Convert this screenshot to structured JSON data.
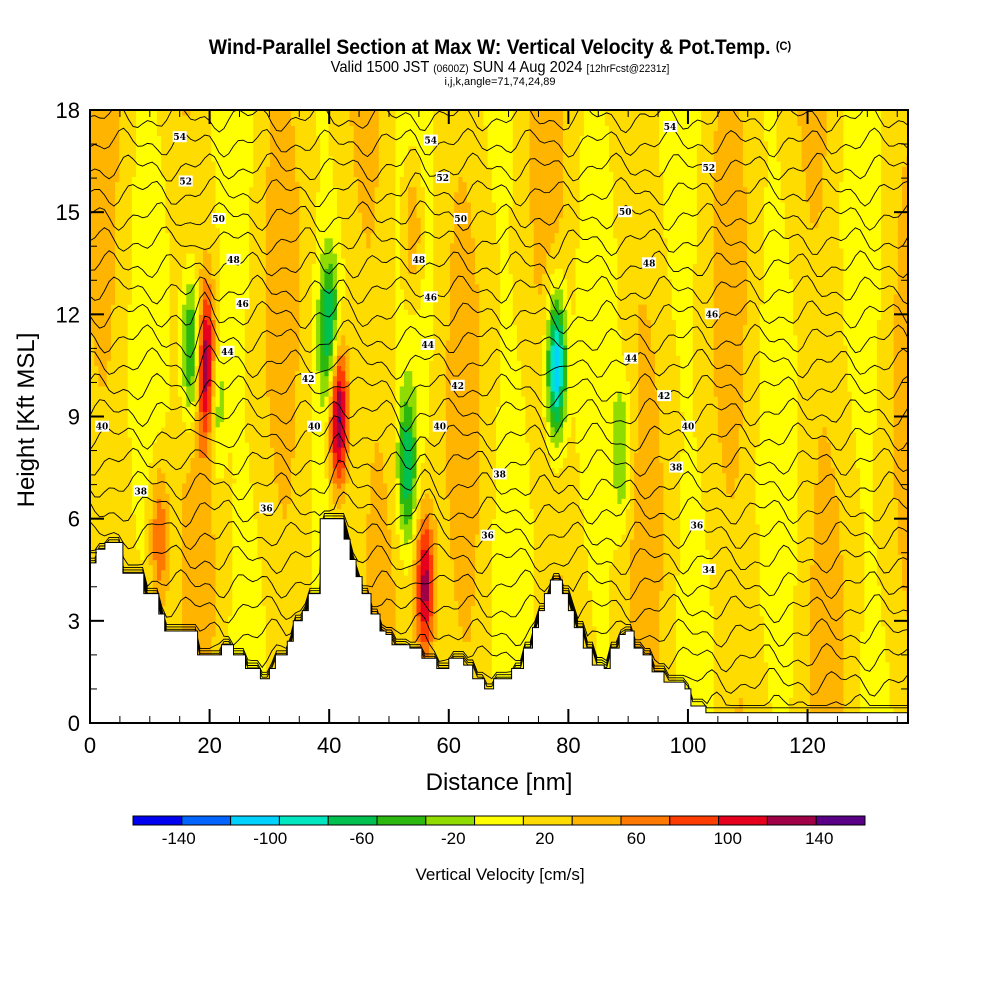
{
  "title": {
    "main": "Wind-Parallel Section at Max W: Vertical Velocity & Pot.Temp.",
    "copyright": "(C)",
    "valid_prefix": "Valid 1500 JST",
    "valid_utc": "(0600Z)",
    "valid_date": "SUN 4 Aug 2024",
    "forecast": "[12hrFcst@2231z]",
    "indices": "i,j,k,angle=71,74,24,89"
  },
  "chart_data": {
    "type": "heatmap",
    "title": "Wind-Parallel Section at Max W: Vertical Velocity & Pot.Temp.",
    "xlabel": "Distance [nm]",
    "ylabel": "Height [Kft MSL]",
    "xlim": [
      0,
      136.8
    ],
    "ylim": [
      0,
      18
    ],
    "xticks": [
      0,
      20,
      40,
      60,
      80,
      100,
      120
    ],
    "yticks": [
      0,
      3,
      6,
      9,
      12,
      15,
      18
    ],
    "xtick_labels": [
      "0",
      "20",
      "40",
      "60",
      "80",
      "100",
      "120"
    ],
    "ytick_labels": [
      "0",
      "3",
      "6",
      "9",
      "12",
      "15",
      "18"
    ],
    "colorbar": {
      "label": "Vertical Velocity [cm/s]",
      "levels": [
        -160,
        -140,
        -120,
        -100,
        -80,
        -60,
        -40,
        -20,
        0,
        20,
        40,
        60,
        80,
        100,
        120,
        140,
        160
      ],
      "tick_labels": [
        "-140",
        "-100",
        "-60",
        "-20",
        "20",
        "60",
        "100",
        "140"
      ],
      "tick_values": [
        -140,
        -100,
        -60,
        -20,
        20,
        60,
        100,
        140
      ],
      "colors": [
        "#0000f0",
        "#0064ff",
        "#00d2ff",
        "#00e6c0",
        "#00c050",
        "#2db80f",
        "#91dc00",
        "#ffff00",
        "#ffdc00",
        "#ffb400",
        "#ff7800",
        "#ff3c00",
        "#e6001e",
        "#a00046",
        "#5a0087"
      ]
    },
    "vertical_velocity_cores": [
      {
        "x_nm": 19.5,
        "z_kft": 10.5,
        "w_cms": 120,
        "sign": "up"
      },
      {
        "x_nm": 17,
        "z_kft": 11,
        "w_cms": -90,
        "sign": "down"
      },
      {
        "x_nm": 21,
        "z_kft": 9.5,
        "w_cms": -60,
        "sign": "down"
      },
      {
        "x_nm": 41.5,
        "z_kft": 9,
        "w_cms": 140,
        "sign": "up"
      },
      {
        "x_nm": 40,
        "z_kft": 11.5,
        "w_cms": -80,
        "sign": "down"
      },
      {
        "x_nm": 53,
        "z_kft": 7.5,
        "w_cms": -80,
        "sign": "down"
      },
      {
        "x_nm": 56,
        "z_kft": 4,
        "w_cms": 110,
        "sign": "up"
      },
      {
        "x_nm": 11.5,
        "z_kft": 5.5,
        "w_cms": 60,
        "sign": "up"
      },
      {
        "x_nm": 78,
        "z_kft": 10.5,
        "w_cms": -130,
        "sign": "down"
      },
      {
        "x_nm": 54,
        "z_kft": 14.5,
        "w_cms": 50,
        "sign": "up"
      },
      {
        "x_nm": 89,
        "z_kft": 8,
        "w_cms": -50,
        "sign": "down"
      }
    ],
    "potential_temperature_contours": {
      "units": "C",
      "interval": 1,
      "labeled_values": [
        34,
        36,
        38,
        40,
        42,
        44,
        46,
        48,
        50,
        52,
        54
      ],
      "labels": [
        {
          "value": 54,
          "x_nm": 15,
          "z_kft": 17.2
        },
        {
          "value": 52,
          "x_nm": 16,
          "z_kft": 15.9
        },
        {
          "value": 50,
          "x_nm": 21.5,
          "z_kft": 14.8
        },
        {
          "value": 48,
          "x_nm": 24,
          "z_kft": 13.6
        },
        {
          "value": 46,
          "x_nm": 25.5,
          "z_kft": 12.3
        },
        {
          "value": 44,
          "x_nm": 23,
          "z_kft": 10.9
        },
        {
          "value": 42,
          "x_nm": 36.5,
          "z_kft": 10.1
        },
        {
          "value": 40,
          "x_nm": 37.5,
          "z_kft": 8.7
        },
        {
          "value": 40,
          "x_nm": 2,
          "z_kft": 8.7
        },
        {
          "value": 38,
          "x_nm": 8.5,
          "z_kft": 6.8
        },
        {
          "value": 36,
          "x_nm": 29.5,
          "z_kft": 6.3
        },
        {
          "value": 54,
          "x_nm": 57,
          "z_kft": 17.1
        },
        {
          "value": 52,
          "x_nm": 59,
          "z_kft": 16.0
        },
        {
          "value": 50,
          "x_nm": 62,
          "z_kft": 14.8
        },
        {
          "value": 48,
          "x_nm": 55,
          "z_kft": 13.6
        },
        {
          "value": 46,
          "x_nm": 57,
          "z_kft": 12.5
        },
        {
          "value": 44,
          "x_nm": 56.5,
          "z_kft": 11.1
        },
        {
          "value": 42,
          "x_nm": 61.5,
          "z_kft": 9.9
        },
        {
          "value": 40,
          "x_nm": 58.5,
          "z_kft": 8.7
        },
        {
          "value": 38,
          "x_nm": 68.5,
          "z_kft": 7.3
        },
        {
          "value": 36,
          "x_nm": 66.5,
          "z_kft": 5.5
        },
        {
          "value": 54,
          "x_nm": 97,
          "z_kft": 17.5
        },
        {
          "value": 52,
          "x_nm": 103.5,
          "z_kft": 16.3
        },
        {
          "value": 50,
          "x_nm": 89.5,
          "z_kft": 15.0
        },
        {
          "value": 48,
          "x_nm": 93.5,
          "z_kft": 13.5
        },
        {
          "value": 46,
          "x_nm": 104,
          "z_kft": 12.0
        },
        {
          "value": 44,
          "x_nm": 90.5,
          "z_kft": 10.7
        },
        {
          "value": 42,
          "x_nm": 96,
          "z_kft": 9.6
        },
        {
          "value": 40,
          "x_nm": 100,
          "z_kft": 8.7
        },
        {
          "value": 38,
          "x_nm": 98,
          "z_kft": 7.5
        },
        {
          "value": 36,
          "x_nm": 101.5,
          "z_kft": 5.8
        },
        {
          "value": 34,
          "x_nm": 103.5,
          "z_kft": 4.5
        }
      ]
    },
    "terrain_profile": {
      "x_nm": [
        0,
        1,
        1,
        2.5,
        2.5,
        5.5,
        5.5,
        9,
        9,
        11.5,
        11.5,
        12.5,
        12.5,
        13.5,
        13.5,
        18,
        18,
        20,
        20,
        22,
        22,
        24,
        24,
        26,
        26,
        28.5,
        28.5,
        30,
        30,
        31,
        31,
        33,
        33,
        34,
        34,
        35.5,
        35.5,
        36.5,
        36.5,
        38.5,
        38.5,
        42.5,
        42.5,
        43.5,
        43.5,
        44.5,
        44.5,
        45.5,
        45.5,
        47,
        47,
        48.5,
        48.5,
        49.5,
        49.5,
        50.5,
        50.5,
        52,
        52,
        53.5,
        53.5,
        55.5,
        55.5,
        58,
        58,
        60,
        60,
        62.5,
        62.5,
        64,
        64,
        66,
        66,
        67.5,
        67.5,
        70.5,
        70.5,
        72.5,
        72.5,
        74,
        74,
        75,
        75,
        76,
        76,
        77,
        77,
        79,
        79,
        80,
        80,
        81,
        81,
        82.5,
        82.5,
        84,
        84,
        86,
        86,
        87,
        87,
        88.5,
        88.5,
        89.5,
        89.5,
        91,
        91,
        92.5,
        92.5,
        94,
        94,
        96,
        96,
        99.5,
        99.5,
        100.5,
        100.5,
        103,
        103,
        136.8
      ],
      "z_kft": [
        4.7,
        4.7,
        5.1,
        5.1,
        5.3,
        5.3,
        4.4,
        4.4,
        3.8,
        3.8,
        3.2,
        3.2,
        2.7,
        2.7,
        2.7,
        2.7,
        2.0,
        2.0,
        2.0,
        2.0,
        2.3,
        2.3,
        2.0,
        2.0,
        1.6,
        1.6,
        1.3,
        1.3,
        1.6,
        1.6,
        2.0,
        2.0,
        2.4,
        2.4,
        3.0,
        3.0,
        3.3,
        3.3,
        3.8,
        3.8,
        6.0,
        6.0,
        5.4,
        5.4,
        4.8,
        4.8,
        4.3,
        4.3,
        3.8,
        3.8,
        3.2,
        3.2,
        2.7,
        2.7,
        2.6,
        2.6,
        2.3,
        2.3,
        2.3,
        2.3,
        2.2,
        2.2,
        1.9,
        1.9,
        1.6,
        1.6,
        1.9,
        1.9,
        1.7,
        1.7,
        1.3,
        1.3,
        1.0,
        1.0,
        1.3,
        1.3,
        1.6,
        1.6,
        2.2,
        2.2,
        2.8,
        2.8,
        3.3,
        3.3,
        3.8,
        3.8,
        4.2,
        4.2,
        3.8,
        3.8,
        3.3,
        3.3,
        2.8,
        2.8,
        2.2,
        2.2,
        1.7,
        1.7,
        1.6,
        1.6,
        2.2,
        2.2,
        2.6,
        2.6,
        2.7,
        2.7,
        2.2,
        2.2,
        2.0,
        2.0,
        1.5,
        1.5,
        1.2,
        1.2,
        1.0,
        1.0,
        0.5,
        0.5,
        0.3,
        0.3
      ]
    }
  }
}
